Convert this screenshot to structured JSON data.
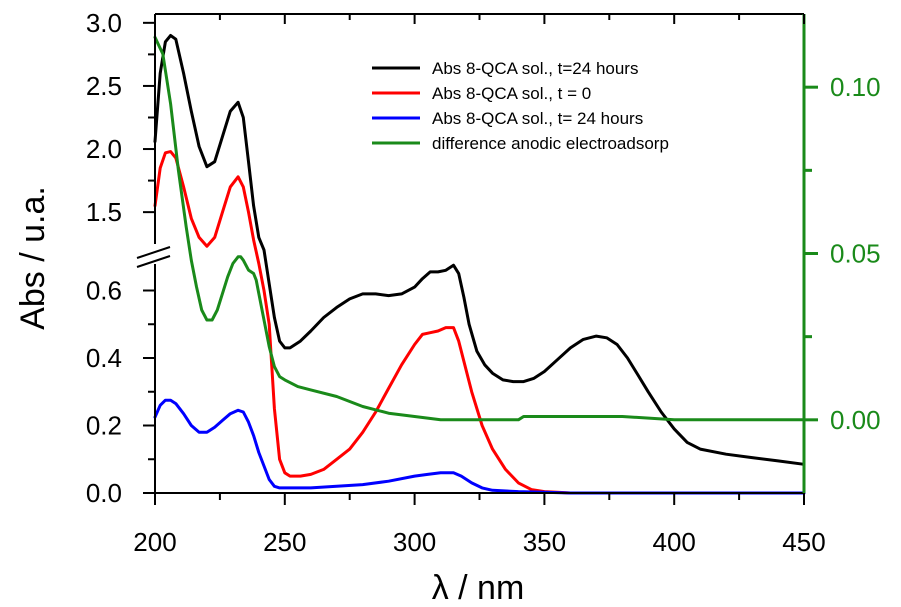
{
  "chart_data": {
    "type": "line",
    "xlabel": "λ / nm",
    "ylabel": "Abs / u.a.",
    "xlim": [
      200,
      450
    ],
    "x_ticks": [
      200,
      250,
      300,
      350,
      400,
      450
    ],
    "y_axis_broken": true,
    "y_lower_range": [
      0,
      0.72
    ],
    "y_upper_range": [
      1.2,
      3.07
    ],
    "y_ticks_lower": [
      "0.0",
      "0.2",
      "0.4",
      "0.6"
    ],
    "y_ticks_upper": [
      "1.5",
      "2.0",
      "2.5",
      "3.0"
    ],
    "y2lim": [
      -0.022,
      0.122
    ],
    "y2_ticks": [
      "0.00",
      "0.05",
      "0.10"
    ],
    "y2_color": "#1a8a1a",
    "grid": false,
    "legend_position": "top-right",
    "series": [
      {
        "name": "Abs 8-QCA sol., t=24 hours",
        "color": "#000000",
        "axis": "left",
        "x": [
          200,
          202,
          204,
          206,
          208,
          211,
          214,
          217,
          220,
          223,
          226,
          229,
          232,
          234,
          236,
          238,
          240,
          242,
          244,
          246,
          248,
          250,
          252,
          256,
          260,
          265,
          270,
          275,
          280,
          285,
          290,
          295,
          300,
          303,
          306,
          309,
          312,
          315,
          317,
          319,
          321,
          324,
          327,
          330,
          334,
          338,
          342,
          346,
          350,
          355,
          360,
          365,
          370,
          374,
          378,
          382,
          386,
          390,
          395,
          400,
          405,
          410,
          420,
          430,
          440,
          450
        ],
        "y": [
          2.06,
          2.6,
          2.85,
          2.9,
          2.87,
          2.6,
          2.3,
          2.02,
          1.86,
          1.9,
          2.1,
          2.3,
          2.37,
          2.25,
          1.9,
          1.55,
          1.3,
          0.72,
          0.62,
          0.52,
          0.45,
          0.43,
          0.43,
          0.45,
          0.48,
          0.52,
          0.55,
          0.575,
          0.59,
          0.59,
          0.585,
          0.59,
          0.61,
          0.635,
          0.655,
          0.655,
          0.66,
          0.675,
          0.65,
          0.58,
          0.5,
          0.42,
          0.38,
          0.355,
          0.335,
          0.33,
          0.33,
          0.34,
          0.36,
          0.395,
          0.43,
          0.455,
          0.465,
          0.46,
          0.44,
          0.4,
          0.35,
          0.3,
          0.24,
          0.19,
          0.15,
          0.13,
          0.115,
          0.105,
          0.095,
          0.085
        ]
      },
      {
        "name": "Abs 8-QCA sol., t = 0",
        "color": "#ff0000",
        "axis": "left",
        "x": [
          200,
          202,
          204,
          206,
          208,
          211,
          214,
          217,
          220,
          223,
          226,
          229,
          232,
          234,
          236,
          238,
          240,
          242,
          244,
          246,
          248,
          250,
          252,
          256,
          260,
          265,
          270,
          275,
          280,
          285,
          290,
          295,
          300,
          303,
          306,
          309,
          312,
          315,
          317,
          319,
          322,
          326,
          330,
          335,
          340,
          345,
          350,
          355,
          360,
          370,
          380,
          390,
          400,
          420,
          440,
          450
        ],
        "y": [
          1.55,
          1.85,
          1.97,
          1.98,
          1.93,
          1.7,
          1.45,
          1.3,
          1.23,
          1.3,
          1.5,
          1.7,
          1.78,
          1.7,
          1.5,
          1.28,
          0.68,
          0.6,
          0.5,
          0.25,
          0.1,
          0.06,
          0.05,
          0.05,
          0.055,
          0.07,
          0.1,
          0.13,
          0.18,
          0.24,
          0.31,
          0.38,
          0.44,
          0.47,
          0.475,
          0.48,
          0.49,
          0.49,
          0.45,
          0.39,
          0.3,
          0.2,
          0.13,
          0.07,
          0.03,
          0.01,
          0.004,
          0.002,
          0.0,
          0.0,
          0.0,
          0.0,
          0.0,
          0.0,
          0.0,
          0.0
        ]
      },
      {
        "name": "Abs 8-QCA sol., t= 24 hours",
        "color": "#0000ff",
        "axis": "left",
        "x": [
          200,
          202,
          204,
          206,
          208,
          211,
          214,
          217,
          220,
          223,
          226,
          229,
          232,
          234,
          236,
          238,
          240,
          242,
          244,
          246,
          248,
          250,
          255,
          260,
          270,
          280,
          290,
          300,
          305,
          310,
          315,
          318,
          322,
          326,
          330,
          340,
          350,
          360,
          380,
          400,
          420,
          450
        ],
        "y": [
          0.225,
          0.26,
          0.275,
          0.275,
          0.265,
          0.235,
          0.2,
          0.18,
          0.18,
          0.195,
          0.215,
          0.235,
          0.245,
          0.24,
          0.21,
          0.17,
          0.12,
          0.08,
          0.04,
          0.02,
          0.015,
          0.015,
          0.015,
          0.015,
          0.02,
          0.025,
          0.035,
          0.05,
          0.055,
          0.06,
          0.06,
          0.05,
          0.03,
          0.015,
          0.008,
          0.004,
          0.002,
          0.0,
          0.0,
          0.0,
          0.0,
          0.0
        ]
      },
      {
        "name": "difference anodic electroadsorp",
        "color": "#1a8a1a",
        "axis": "right",
        "x": [
          200,
          203,
          206,
          209,
          212,
          214,
          216,
          218,
          220,
          222,
          224,
          226,
          228,
          230,
          232,
          233,
          234,
          236,
          238,
          239,
          240,
          242,
          244,
          246,
          248,
          250,
          255,
          260,
          270,
          280,
          290,
          300,
          310,
          314,
          316,
          320,
          330,
          340,
          342,
          350,
          360,
          380,
          400,
          420,
          450
        ],
        "y": [
          0.115,
          0.11,
          0.095,
          0.075,
          0.058,
          0.048,
          0.04,
          0.033,
          0.03,
          0.03,
          0.033,
          0.038,
          0.043,
          0.047,
          0.049,
          0.049,
          0.048,
          0.045,
          0.044,
          0.042,
          0.038,
          0.03,
          0.022,
          0.016,
          0.013,
          0.012,
          0.01,
          0.009,
          0.007,
          0.004,
          0.002,
          0.001,
          0.0,
          0.0,
          0.0,
          0.0,
          0.0,
          0.0,
          0.001,
          0.001,
          0.001,
          0.001,
          0.0,
          0.0,
          0.0
        ]
      }
    ]
  }
}
